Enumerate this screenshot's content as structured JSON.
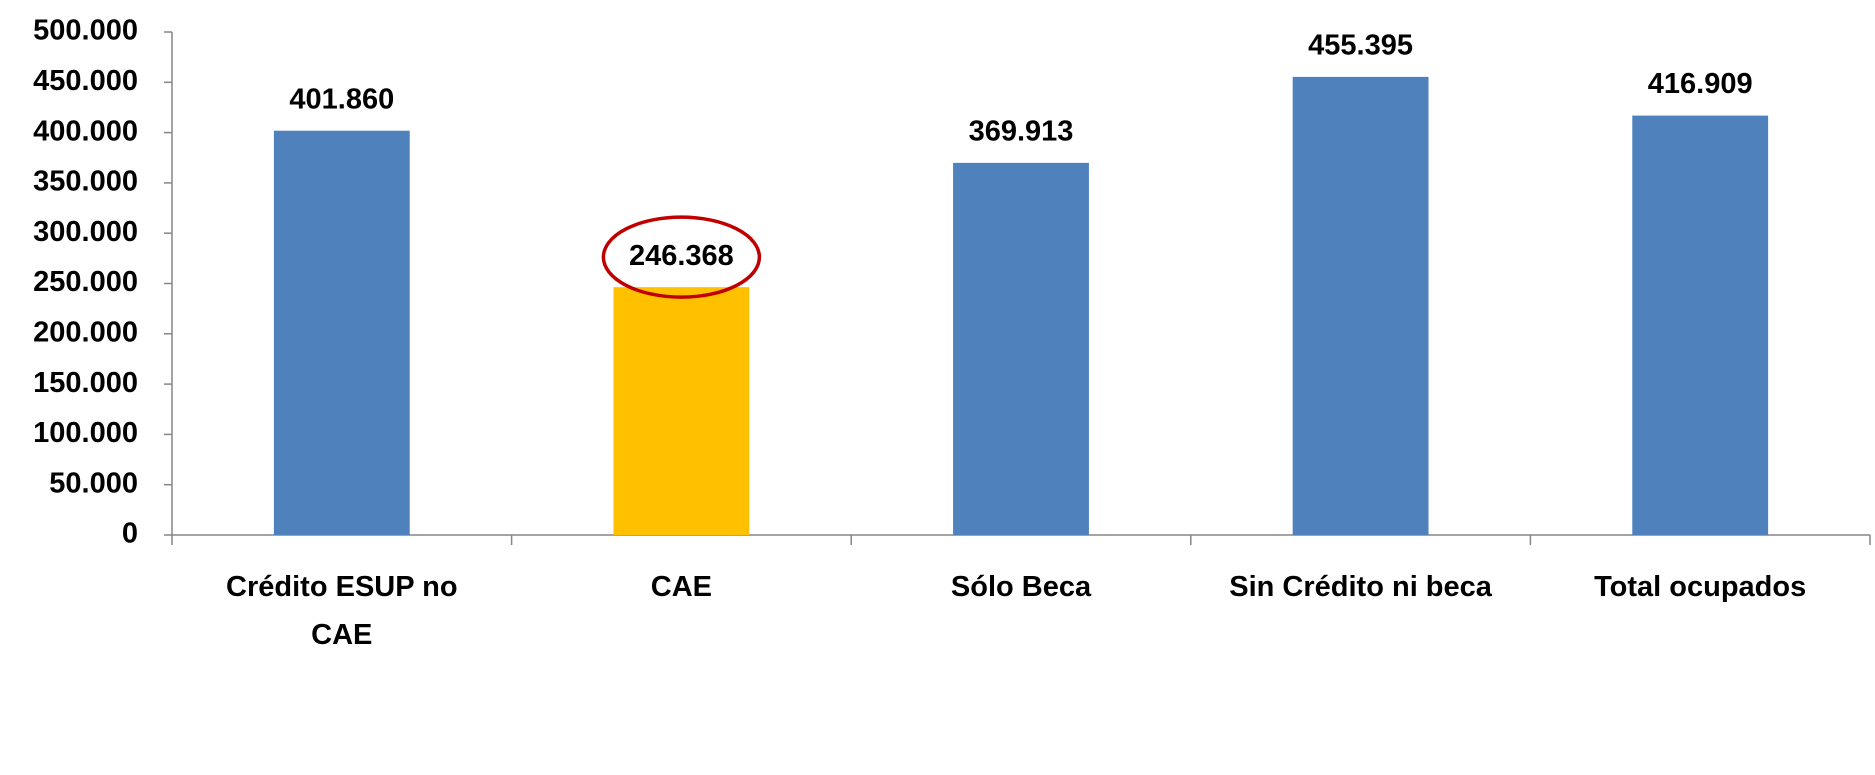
{
  "chart_data": {
    "type": "bar",
    "categories": [
      "Crédito ESUP no CAE",
      "CAE",
      "Sólo Beca",
      "Sin Crédito ni beca",
      "Total ocupados"
    ],
    "values": [
      401860,
      246368,
      369913,
      455395,
      416909
    ],
    "value_labels": [
      "401.860",
      "246.368",
      "369.913",
      "455.395",
      "416.909"
    ],
    "colors": [
      "#4f81bd",
      "#ffc000",
      "#4f81bd",
      "#4f81bd",
      "#4f81bd"
    ],
    "highlight": {
      "index": 1,
      "color": "#c00000"
    },
    "ylim": [
      0,
      500000
    ],
    "yticks": [
      0,
      {
        "value": 50000,
        "label": "50.000"
      },
      {
        "value": 100000,
        "label": "100.000"
      },
      {
        "value": 150000,
        "label": "150.000"
      },
      {
        "value": 200000,
        "label": "200.000"
      },
      {
        "value": 250000,
        "label": "250.000"
      },
      {
        "value": 300000,
        "label": "300.000"
      },
      {
        "value": 350000,
        "label": "350.000"
      },
      {
        "value": 400000,
        "label": "400.000"
      },
      {
        "value": 450000,
        "label": "450.000"
      },
      {
        "value": 500000,
        "label": "500.000"
      }
    ],
    "grid": false
  }
}
